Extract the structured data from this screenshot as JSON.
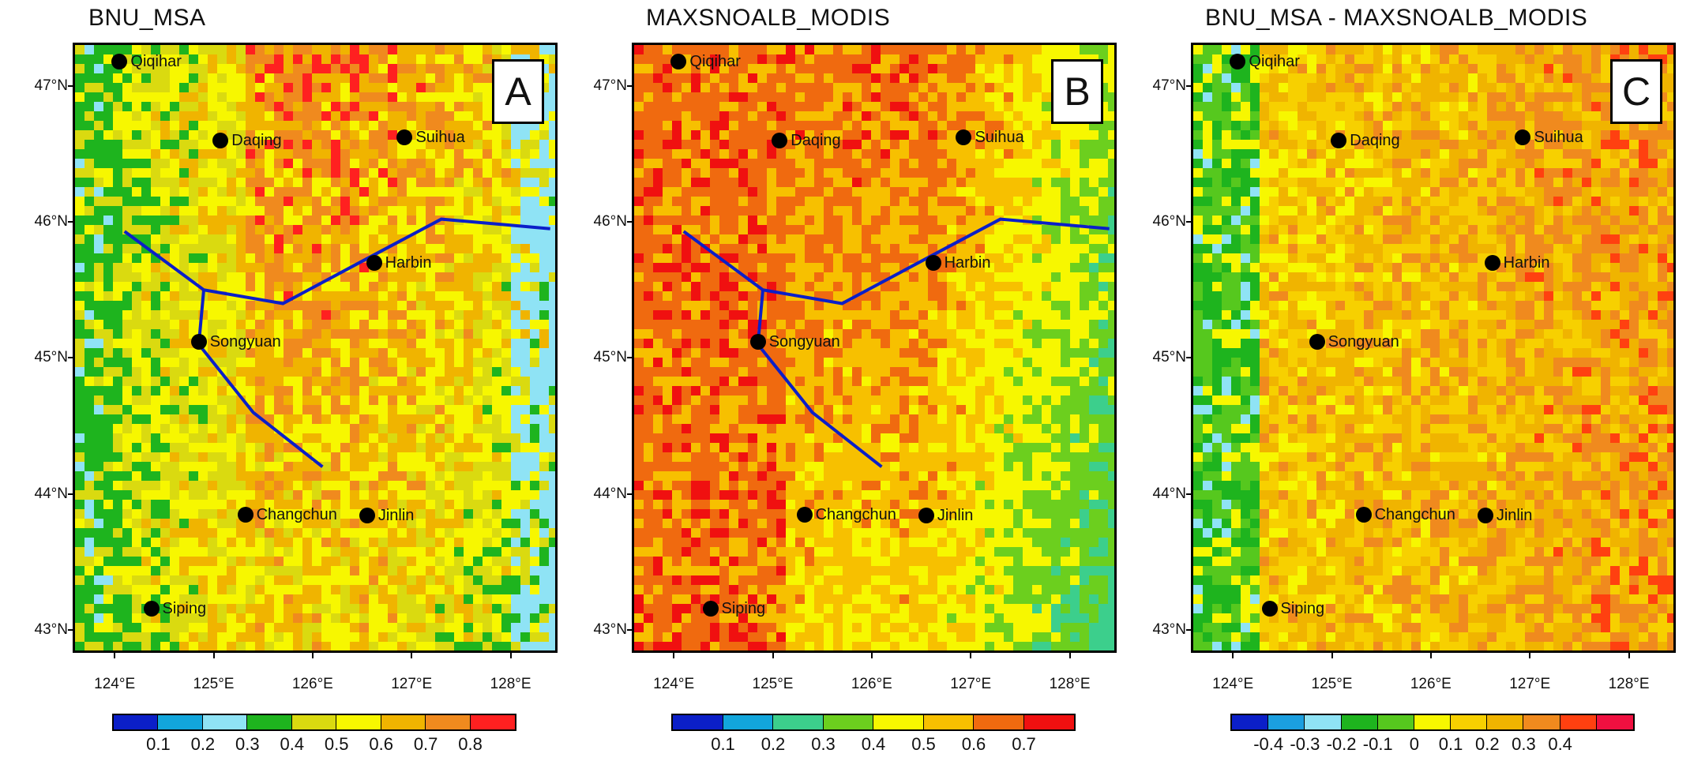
{
  "lat_labels": [
    "47°N",
    "46°N",
    "45°N",
    "44°N",
    "43°N"
  ],
  "lon_labels": [
    "124°E",
    "125°E",
    "126°E",
    "127°E",
    "128°E"
  ],
  "cities": [
    {
      "name": "Qiqihar",
      "lon": 124.05,
      "lat": 47.18
    },
    {
      "name": "Daqing",
      "lon": 125.07,
      "lat": 46.6
    },
    {
      "name": "Suihua",
      "lon": 126.93,
      "lat": 46.62
    },
    {
      "name": "Harbin",
      "lon": 126.62,
      "lat": 45.7
    },
    {
      "name": "Songyuan",
      "lon": 124.85,
      "lat": 45.12
    },
    {
      "name": "Changchun",
      "lon": 125.32,
      "lat": 43.85
    },
    {
      "name": "Jinlin",
      "lon": 126.55,
      "lat": 43.84
    },
    {
      "name": "Siping",
      "lon": 124.37,
      "lat": 43.16
    }
  ],
  "panels": [
    {
      "title": "BNU_MSA",
      "letter": "A",
      "base_color": "#f7c400",
      "colorbar": {
        "colors": [
          "#0b1fc8",
          "#12a6dc",
          "#8fe3f5",
          "#1eb41e",
          "#dada10",
          "#f7f700",
          "#f0b400",
          "#f08a1e",
          "#ff2020"
        ],
        "labels": [
          "0.1",
          "0.2",
          "0.3",
          "0.4",
          "0.5",
          "0.6",
          "0.7",
          "0.8"
        ]
      }
    },
    {
      "title": "MAXSNOALB_MODIS",
      "letter": "B",
      "base_color": "#f06a0f",
      "colorbar": {
        "colors": [
          "#0b1fc8",
          "#12a6dc",
          "#3ccf8c",
          "#6ccf1e",
          "#f7f700",
          "#f7c000",
          "#f06a0f",
          "#f01010"
        ],
        "labels": [
          "0.1",
          "0.2",
          "0.3",
          "0.4",
          "0.5",
          "0.6",
          "0.7"
        ]
      }
    },
    {
      "title": "BNU_MSA - MAXSNOALB_MODIS",
      "letter": "C",
      "base_color": "#56c81e",
      "colorbar": {
        "colors": [
          "#0b1fc8",
          "#1b9fe0",
          "#8fe3f5",
          "#1eb41e",
          "#56c81e",
          "#f7f700",
          "#f7d000",
          "#f0b400",
          "#f08a1e",
          "#ff4010",
          "#f01040"
        ],
        "labels": [
          "-0.4",
          "-0.3",
          "-0.2",
          "-0.1",
          "0",
          "0.1",
          "0.2",
          "0.3",
          "0.4"
        ]
      }
    }
  ]
}
